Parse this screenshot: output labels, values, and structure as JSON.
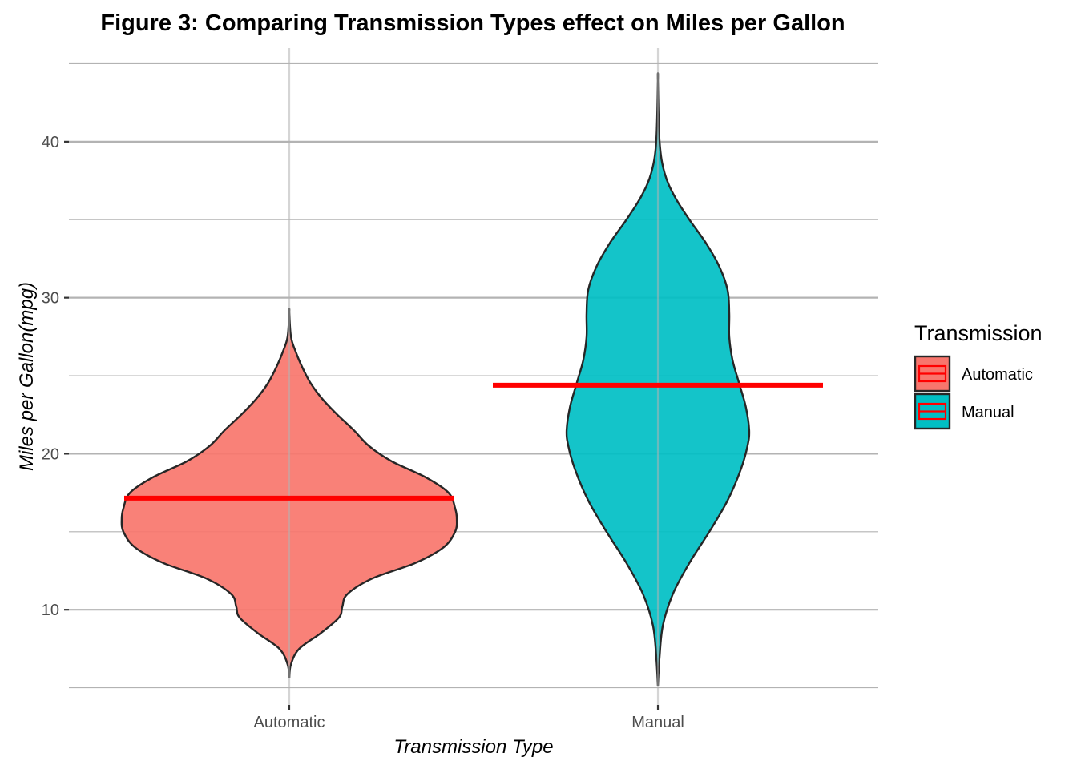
{
  "chart_data": {
    "type": "violin",
    "title": "Figure 3: Comparing Transmission Types effect on Miles per Gallon",
    "xlabel": "Transmission Type",
    "ylabel": "Miles per Gallon(mpg)",
    "categories": [
      "Automatic",
      "Manual"
    ],
    "y_ticks": [
      10,
      20,
      30,
      40
    ],
    "ylim": [
      3.9,
      46
    ],
    "grid": true,
    "legend": {
      "title": "Transmission",
      "placement": "right",
      "entries": [
        "Automatic",
        "Manual"
      ]
    },
    "colors": {
      "Automatic": "#F8766D",
      "Manual": "#00BFC4",
      "mean_line": "#FF0000",
      "outline": "#262626"
    },
    "series": [
      {
        "name": "Automatic",
        "range": [
          5.6,
          29.1
        ],
        "mean": 17.15,
        "density_profile": [
          [
            5.6,
            0.0
          ],
          [
            6.5,
            0.01
          ],
          [
            7.5,
            0.06
          ],
          [
            8.5,
            0.19
          ],
          [
            9.5,
            0.3
          ],
          [
            10.2,
            0.32
          ],
          [
            11.0,
            0.35
          ],
          [
            12.0,
            0.5
          ],
          [
            13.0,
            0.76
          ],
          [
            14.0,
            0.93
          ],
          [
            15.0,
            1.0
          ],
          [
            15.8,
            1.01
          ],
          [
            16.5,
            1.0
          ],
          [
            17.5,
            0.96
          ],
          [
            18.5,
            0.82
          ],
          [
            19.5,
            0.62
          ],
          [
            20.5,
            0.48
          ],
          [
            21.5,
            0.39
          ],
          [
            22.5,
            0.29
          ],
          [
            23.5,
            0.2
          ],
          [
            24.5,
            0.13
          ],
          [
            25.5,
            0.08
          ],
          [
            26.5,
            0.04
          ],
          [
            27.5,
            0.01
          ],
          [
            29.1,
            0.0
          ]
        ]
      },
      {
        "name": "Manual",
        "range": [
          5.1,
          43.9
        ],
        "mean": 24.39,
        "density_profile": [
          [
            5.1,
            0.0
          ],
          [
            7.0,
            0.01
          ],
          [
            9.0,
            0.03
          ],
          [
            11.0,
            0.09
          ],
          [
            13.0,
            0.19
          ],
          [
            15.0,
            0.31
          ],
          [
            17.0,
            0.42
          ],
          [
            19.0,
            0.5
          ],
          [
            20.5,
            0.54
          ],
          [
            21.5,
            0.55
          ],
          [
            23.0,
            0.53
          ],
          [
            24.5,
            0.49
          ],
          [
            26.0,
            0.45
          ],
          [
            27.5,
            0.43
          ],
          [
            29.0,
            0.43
          ],
          [
            30.5,
            0.42
          ],
          [
            32.0,
            0.37
          ],
          [
            33.5,
            0.29
          ],
          [
            35.0,
            0.19
          ],
          [
            36.5,
            0.1
          ],
          [
            38.0,
            0.04
          ],
          [
            40.0,
            0.01
          ],
          [
            43.9,
            0.0
          ]
        ]
      }
    ]
  }
}
